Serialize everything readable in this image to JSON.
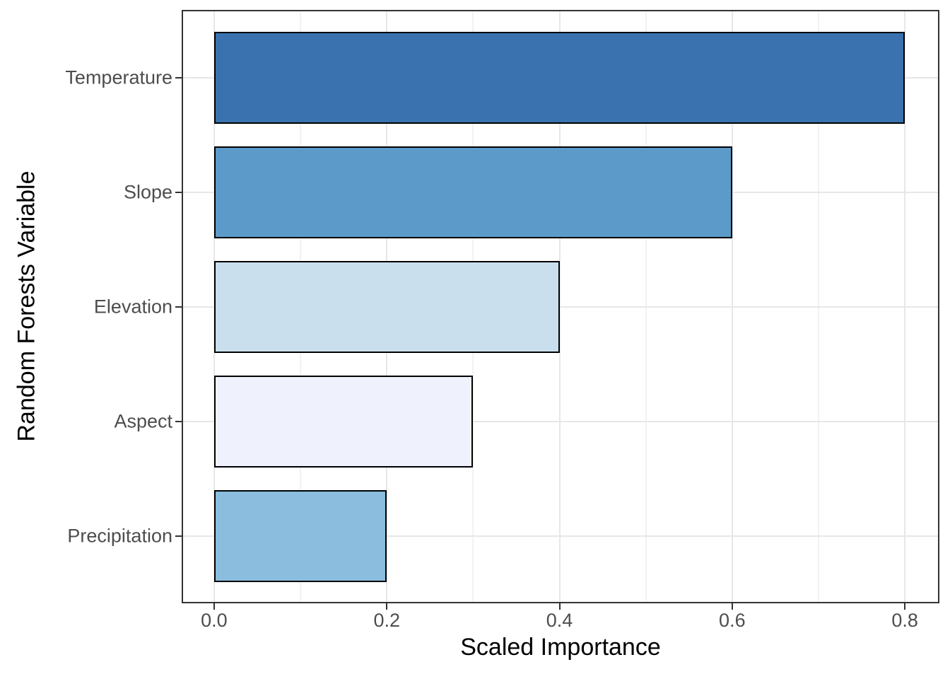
{
  "chart_data": {
    "type": "bar",
    "orientation": "horizontal",
    "xlabel": "Scaled Importance",
    "ylabel": "Random Forests Variable",
    "categories": [
      "Temperature",
      "Slope",
      "Elevation",
      "Aspect",
      "Precipitation"
    ],
    "values": [
      0.8,
      0.6,
      0.4,
      0.3,
      0.2
    ],
    "bar_colors": [
      "#3A72B0",
      "#5C9BC9",
      "#CADFEE",
      "#EFF2FC",
      "#8BBDDF"
    ],
    "bar_border_color": "#000000",
    "x_ticks": [
      0.0,
      0.2,
      0.4,
      0.6,
      0.8
    ],
    "x_tick_labels": [
      "0.0",
      "0.2",
      "0.4",
      "0.6",
      "0.8"
    ],
    "x_minor_ticks": [
      0.1,
      0.3,
      0.5,
      0.7
    ],
    "xlim": [
      -0.0376,
      0.84
    ],
    "grid": "major-x-y, minor-x",
    "legend": "none",
    "colors": {
      "panel_background": "#FFFFFF",
      "panel_border": "#333333",
      "grid_major": "#E7E7E7",
      "grid_minor": "#F2F2F2",
      "tick_mark": "#333333",
      "tick_label": "#4D4D4D",
      "axis_title": "#000000"
    }
  }
}
